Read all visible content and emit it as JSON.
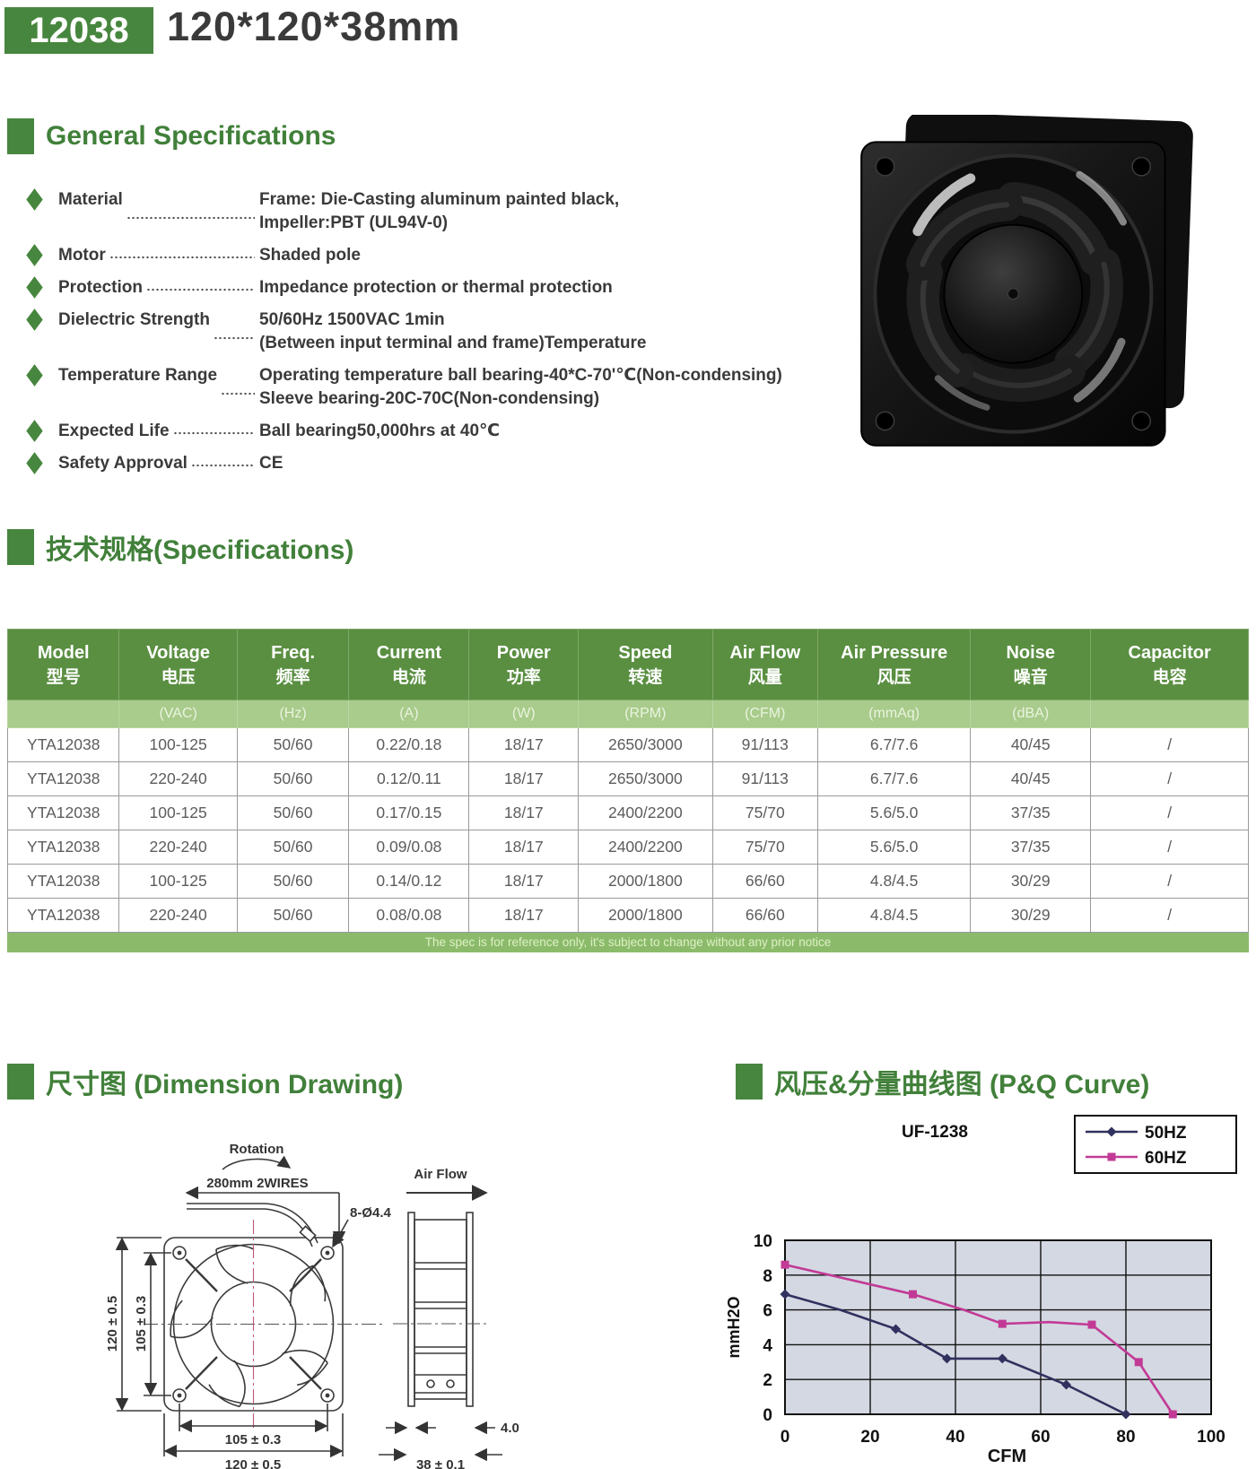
{
  "page": {
    "model_badge": "12038",
    "size_title": "120*120*38mm"
  },
  "accent_colors": {
    "green": "#47863e",
    "table_header_green": "#5a8f41",
    "units_row_green": "#a9cb8b",
    "footer_green": "#8bbb6a",
    "series_50hz": "#31315f",
    "series_60hz": "#c23a96",
    "plot_bg": "#d4d8e2"
  },
  "sections": {
    "general": "General Specifications",
    "specs": "技术规格(Specifications)",
    "dimension": "尺寸图 (Dimension Drawing)",
    "pq": "风压&分量曲线图 (P&Q Curve)"
  },
  "general_specs": {
    "items": [
      {
        "label": "Material",
        "value_lines": [
          "Frame: Die-Casting aluminum painted black,",
          "Impeller:PBT (UL94V-0)"
        ]
      },
      {
        "label": "Motor",
        "value_lines": [
          "Shaded pole"
        ]
      },
      {
        "label": "Protection",
        "value_lines": [
          "Impedance protection or thermal protection"
        ]
      },
      {
        "label": "Dielectric Strength",
        "value_lines": [
          "50/60Hz 1500VAC 1min",
          "(Between input terminal and frame)Temperature"
        ]
      },
      {
        "label": "Temperature Range",
        "value_lines": [
          "Operating temperature ball bearing-40*C-70'℃(Non-condensing)",
          "Sleeve bearing-20C-70C(Non-condensing)"
        ]
      },
      {
        "label": "Expected Life",
        "value_lines": [
          "Ball bearing50,000hrs at 40℃"
        ]
      },
      {
        "label": "Safety Approval",
        "value_lines": [
          "CE"
        ]
      }
    ]
  },
  "spec_table": {
    "columns": [
      {
        "en": "Model",
        "zh": "型号",
        "unit": ""
      },
      {
        "en": "Voltage",
        "zh": "电压",
        "unit": "(VAC)"
      },
      {
        "en": "Freq.",
        "zh": "频率",
        "unit": "(Hz)"
      },
      {
        "en": "Current",
        "zh": "电流",
        "unit": "(A)"
      },
      {
        "en": "Power",
        "zh": "功率",
        "unit": "(W)"
      },
      {
        "en": "Speed",
        "zh": "转速",
        "unit": "(RPM)"
      },
      {
        "en": "Air Flow",
        "zh": "风量",
        "unit": "(CFM)"
      },
      {
        "en": "Air Pressure",
        "zh": "风压",
        "unit": "(mmAq)"
      },
      {
        "en": "Noise",
        "zh": "噪音",
        "unit": "(dBA)"
      },
      {
        "en": "Capacitor",
        "zh": "电容",
        "unit": ""
      }
    ],
    "rows": [
      [
        "YTA12038",
        "100-125",
        "50/60",
        "0.22/0.18",
        "18/17",
        "2650/3000",
        "91/113",
        "6.7/7.6",
        "40/45",
        "/"
      ],
      [
        "YTA12038",
        "220-240",
        "50/60",
        "0.12/0.11",
        "18/17",
        "2650/3000",
        "91/113",
        "6.7/7.6",
        "40/45",
        "/"
      ],
      [
        "YTA12038",
        "100-125",
        "50/60",
        "0.17/0.15",
        "18/17",
        "2400/2200",
        "75/70",
        "5.6/5.0",
        "37/35",
        "/"
      ],
      [
        "YTA12038",
        "220-240",
        "50/60",
        "0.09/0.08",
        "18/17",
        "2400/2200",
        "75/70",
        "5.6/5.0",
        "37/35",
        "/"
      ],
      [
        "YTA12038",
        "100-125",
        "50/60",
        "0.14/0.12",
        "18/17",
        "2000/1800",
        "66/60",
        "4.8/4.5",
        "30/29",
        "/"
      ],
      [
        "YTA12038",
        "220-240",
        "50/60",
        "0.08/0.08",
        "18/17",
        "2000/1800",
        "66/60",
        "4.8/4.5",
        "30/29",
        "/"
      ]
    ],
    "footnote": "The spec is for reference only, it's subject to change without any prior notice"
  },
  "dimension": {
    "labels": {
      "rotation": "Rotation",
      "wires": "280mm 2WIRES",
      "holes": "8-Ø4.4",
      "airflow": "Air Flow",
      "left_outer": "120 ± 0.5",
      "left_inner": "105 ± 0.3",
      "bottom_inner": "105 ± 0.3",
      "bottom_outer": "120 ± 0.5",
      "depth": "38 ± 0.1",
      "flange": "4.0"
    }
  },
  "chart_data": {
    "type": "line",
    "title": "UF-1238",
    "xlabel": "CFM",
    "ylabel": "mmH2O",
    "xlim": [
      0,
      100
    ],
    "ylim": [
      0,
      10
    ],
    "xticks": [
      0,
      20,
      40,
      60,
      80,
      100
    ],
    "yticks": [
      0,
      2,
      4,
      6,
      8,
      10
    ],
    "grid": true,
    "legend_position": "top-right",
    "plot_bg": "#d4d8e2",
    "series": [
      {
        "name": "50HZ",
        "color": "#31315f",
        "marker": "diamond",
        "points": [
          [
            0,
            6.9
          ],
          [
            13,
            6.0
          ],
          [
            26,
            4.9
          ],
          [
            38,
            3.2
          ],
          [
            51,
            3.2
          ],
          [
            66,
            1.7
          ],
          [
            80,
            0
          ]
        ],
        "marker_points": [
          [
            0,
            6.9
          ],
          [
            26,
            4.9
          ],
          [
            38,
            3.2
          ],
          [
            51,
            3.2
          ],
          [
            66,
            1.7
          ],
          [
            80,
            0
          ]
        ]
      },
      {
        "name": "60HZ",
        "color": "#c23a96",
        "marker": "square",
        "points": [
          [
            0,
            8.6
          ],
          [
            30,
            6.9
          ],
          [
            42,
            6.0
          ],
          [
            51,
            5.2
          ],
          [
            62,
            5.3
          ],
          [
            72,
            5.15
          ],
          [
            83,
            3.0
          ],
          [
            91,
            0
          ]
        ],
        "marker_points": [
          [
            0,
            8.6
          ],
          [
            30,
            6.9
          ],
          [
            51,
            5.2
          ],
          [
            72,
            5.15
          ],
          [
            83,
            3.0
          ],
          [
            91,
            0
          ]
        ]
      }
    ]
  }
}
